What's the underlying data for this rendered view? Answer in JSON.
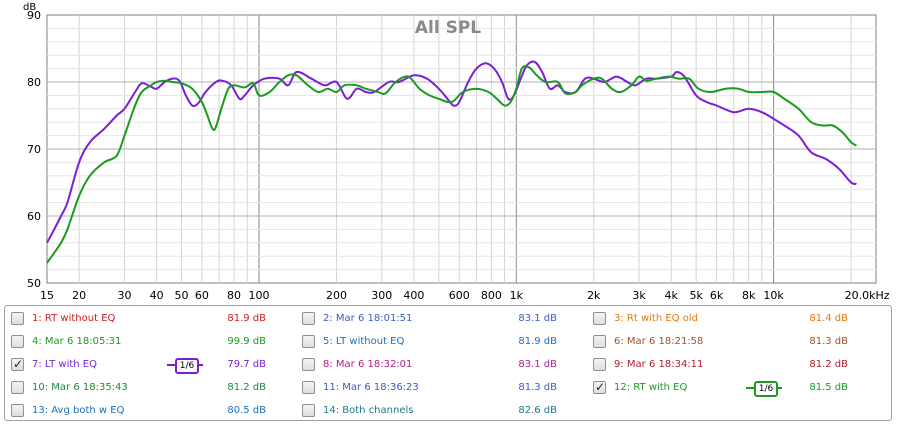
{
  "chart_data": {
    "type": "line",
    "title": "All SPL",
    "ylabel": "dB",
    "xlabel": "",
    "xscale": "log",
    "xlim": [
      15,
      25000
    ],
    "ylim": [
      50,
      90
    ],
    "x_tick_labels": [
      "15",
      "20",
      "30",
      "40",
      "50",
      "60",
      "80",
      "100",
      "200",
      "300",
      "400",
      "600",
      "800",
      "1k",
      "2k",
      "3k",
      "4k",
      "5k",
      "6k",
      "8k",
      "10k",
      "20.0kHz"
    ],
    "y_tick_labels": [
      "90",
      "80",
      "70",
      "60",
      "50"
    ],
    "series": [
      {
        "name": "7: LT with EQ",
        "color": "#7a1fd6",
        "points": [
          [
            15,
            56
          ],
          [
            16,
            58
          ],
          [
            17,
            60
          ],
          [
            18,
            62
          ],
          [
            20,
            68
          ],
          [
            22,
            71
          ],
          [
            25,
            73
          ],
          [
            28,
            75
          ],
          [
            30,
            76
          ],
          [
            33,
            78.5
          ],
          [
            35,
            79.8
          ],
          [
            38,
            79.3
          ],
          [
            40,
            79
          ],
          [
            43,
            80
          ],
          [
            46,
            80.5
          ],
          [
            49,
            80.2
          ],
          [
            52,
            78
          ],
          [
            55,
            76.5
          ],
          [
            58,
            76.8
          ],
          [
            62,
            78.5
          ],
          [
            68,
            80
          ],
          [
            72,
            80.2
          ],
          [
            78,
            79.5
          ],
          [
            84,
            77.5
          ],
          [
            88,
            78
          ],
          [
            95,
            79.5
          ],
          [
            105,
            80.5
          ],
          [
            120,
            80.5
          ],
          [
            130,
            79.5
          ],
          [
            140,
            81.5
          ],
          [
            160,
            80.5
          ],
          [
            180,
            79.5
          ],
          [
            200,
            80
          ],
          [
            220,
            77.5
          ],
          [
            240,
            79
          ],
          [
            260,
            78.5
          ],
          [
            280,
            78.5
          ],
          [
            320,
            80
          ],
          [
            350,
            80
          ],
          [
            400,
            81
          ],
          [
            450,
            80.5
          ],
          [
            500,
            79
          ],
          [
            540,
            77.5
          ],
          [
            570,
            76.5
          ],
          [
            600,
            77
          ],
          [
            650,
            80
          ],
          [
            700,
            82
          ],
          [
            760,
            82.8
          ],
          [
            820,
            82
          ],
          [
            880,
            80
          ],
          [
            930,
            77.5
          ],
          [
            980,
            78
          ],
          [
            1040,
            80.5
          ],
          [
            1100,
            82.5
          ],
          [
            1180,
            83
          ],
          [
            1260,
            81.5
          ],
          [
            1350,
            79
          ],
          [
            1450,
            79.5
          ],
          [
            1550,
            78.5
          ],
          [
            1700,
            78.5
          ],
          [
            1850,
            80.5
          ],
          [
            2000,
            80.5
          ],
          [
            2200,
            80
          ],
          [
            2450,
            80.8
          ],
          [
            2700,
            80
          ],
          [
            2900,
            79.5
          ],
          [
            3200,
            80.5
          ],
          [
            3500,
            80.5
          ],
          [
            4000,
            80.8
          ],
          [
            4200,
            81.5
          ],
          [
            4500,
            80.8
          ],
          [
            5000,
            78
          ],
          [
            5500,
            77
          ],
          [
            6000,
            76.5
          ],
          [
            7000,
            75.5
          ],
          [
            8000,
            76
          ],
          [
            9000,
            75.5
          ],
          [
            10000,
            74.5
          ],
          [
            11000,
            73.5
          ],
          [
            12500,
            72
          ],
          [
            14000,
            69.5
          ],
          [
            16000,
            68.5
          ],
          [
            18000,
            67
          ],
          [
            20000,
            65
          ],
          [
            21000,
            64.8
          ]
        ]
      },
      {
        "name": "12: RT with EQ",
        "color": "#1b9a20",
        "points": [
          [
            15,
            53
          ],
          [
            16,
            54.5
          ],
          [
            17,
            56
          ],
          [
            18,
            58
          ],
          [
            20,
            63
          ],
          [
            22,
            66
          ],
          [
            25,
            68
          ],
          [
            28,
            69
          ],
          [
            30,
            72
          ],
          [
            33,
            76.5
          ],
          [
            35,
            78.5
          ],
          [
            38,
            79.5
          ],
          [
            40,
            80
          ],
          [
            43,
            80.2
          ],
          [
            46,
            80
          ],
          [
            50,
            79.8
          ],
          [
            55,
            79
          ],
          [
            60,
            77
          ],
          [
            63,
            75
          ],
          [
            66,
            73
          ],
          [
            68,
            73.3
          ],
          [
            72,
            76.5
          ],
          [
            76,
            79
          ],
          [
            80,
            79.5
          ],
          [
            88,
            79.2
          ],
          [
            95,
            79.8
          ],
          [
            100,
            78
          ],
          [
            110,
            78.5
          ],
          [
            120,
            80
          ],
          [
            130,
            81
          ],
          [
            140,
            81
          ],
          [
            155,
            79.5
          ],
          [
            170,
            78.5
          ],
          [
            185,
            79
          ],
          [
            200,
            78.5
          ],
          [
            215,
            79.5
          ],
          [
            240,
            79.5
          ],
          [
            260,
            79
          ],
          [
            290,
            78.5
          ],
          [
            310,
            78.3
          ],
          [
            340,
            80
          ],
          [
            380,
            80.8
          ],
          [
            420,
            79
          ],
          [
            460,
            78
          ],
          [
            500,
            77.5
          ],
          [
            560,
            77
          ],
          [
            620,
            78.5
          ],
          [
            700,
            79
          ],
          [
            780,
            78.5
          ],
          [
            840,
            77.5
          ],
          [
            900,
            76.5
          ],
          [
            950,
            77
          ],
          [
            1000,
            79
          ],
          [
            1050,
            82
          ],
          [
            1120,
            82.2
          ],
          [
            1200,
            81
          ],
          [
            1300,
            80
          ],
          [
            1450,
            80
          ],
          [
            1550,
            78.3
          ],
          [
            1700,
            78.5
          ],
          [
            1800,
            79.5
          ],
          [
            2000,
            80.5
          ],
          [
            2150,
            80.5
          ],
          [
            2350,
            79
          ],
          [
            2550,
            78.5
          ],
          [
            2800,
            79.5
          ],
          [
            3000,
            80.8
          ],
          [
            3200,
            80.2
          ],
          [
            3500,
            80.5
          ],
          [
            3900,
            80.8
          ],
          [
            4300,
            80.5
          ],
          [
            4700,
            80.5
          ],
          [
            5100,
            79
          ],
          [
            5700,
            78.5
          ],
          [
            6500,
            79
          ],
          [
            7300,
            79
          ],
          [
            8000,
            78.5
          ],
          [
            9000,
            78.5
          ],
          [
            10000,
            78.5
          ],
          [
            11000,
            77.5
          ],
          [
            12500,
            76
          ],
          [
            14000,
            74
          ],
          [
            15500,
            73.5
          ],
          [
            17000,
            73.5
          ],
          [
            18500,
            72.5
          ],
          [
            20000,
            71
          ],
          [
            21000,
            70.5
          ]
        ]
      }
    ]
  },
  "legend": {
    "smoothing_label": "1/6",
    "entries": [
      {
        "label": "1: RT without EQ",
        "value": "81.9 dB",
        "color": "#c81e1e",
        "checked": false,
        "smoothing": false,
        "row": 0,
        "col": 0
      },
      {
        "label": "2: Mar 6 18:01:51",
        "value": "83.1 dB",
        "color": "#3d5cc4",
        "checked": false,
        "smoothing": false,
        "row": 0,
        "col": 1
      },
      {
        "label": "3: Rt with EQ old",
        "value": "81.4 dB",
        "color": "#e07a10",
        "checked": false,
        "smoothing": false,
        "row": 0,
        "col": 2
      },
      {
        "label": "4: Mar 6 18:05:31",
        "value": "99.9 dB",
        "color": "#1b9a20",
        "checked": false,
        "smoothing": false,
        "row": 1,
        "col": 0
      },
      {
        "label": "5: LT without EQ",
        "value": "81.9 dB",
        "color": "#1e6fb8",
        "checked": false,
        "smoothing": false,
        "row": 1,
        "col": 1
      },
      {
        "label": "6: Mar 6 18:21:58",
        "value": "81.3 dB",
        "color": "#a0522d",
        "checked": false,
        "smoothing": false,
        "row": 1,
        "col": 2
      },
      {
        "label": "7: LT with EQ",
        "value": "79.7 dB",
        "color": "#7a1fd6",
        "checked": true,
        "smoothing": true,
        "row": 2,
        "col": 0
      },
      {
        "label": "8: Mar 6 18:32:01",
        "value": "83.1 dB",
        "color": "#b3208f",
        "checked": false,
        "smoothing": false,
        "row": 2,
        "col": 1
      },
      {
        "label": "9: Mar 6 18:34:11",
        "value": "81.2 dB",
        "color": "#b01e2e",
        "checked": false,
        "smoothing": false,
        "row": 2,
        "col": 2
      },
      {
        "label": "10: Mar 6 18:35:43",
        "value": "81.2 dB",
        "color": "#1b8a3a",
        "checked": false,
        "smoothing": false,
        "row": 3,
        "col": 0
      },
      {
        "label": "11: Mar 6 18:36:23",
        "value": "81.3 dB",
        "color": "#3d5cc4",
        "checked": false,
        "smoothing": false,
        "row": 3,
        "col": 1
      },
      {
        "label": "12: RT with EQ",
        "value": "81.5 dB",
        "color": "#1b9a20",
        "checked": true,
        "smoothing": true,
        "row": 3,
        "col": 2
      },
      {
        "label": "13: Avg both w EQ",
        "value": "80.5 dB",
        "color": "#1e6fb8",
        "checked": false,
        "smoothing": false,
        "row": 4,
        "col": 0
      },
      {
        "label": "14: Both channels",
        "value": "82.6 dB",
        "color": "#1a7a8a",
        "checked": false,
        "smoothing": false,
        "row": 4,
        "col": 1
      }
    ]
  }
}
